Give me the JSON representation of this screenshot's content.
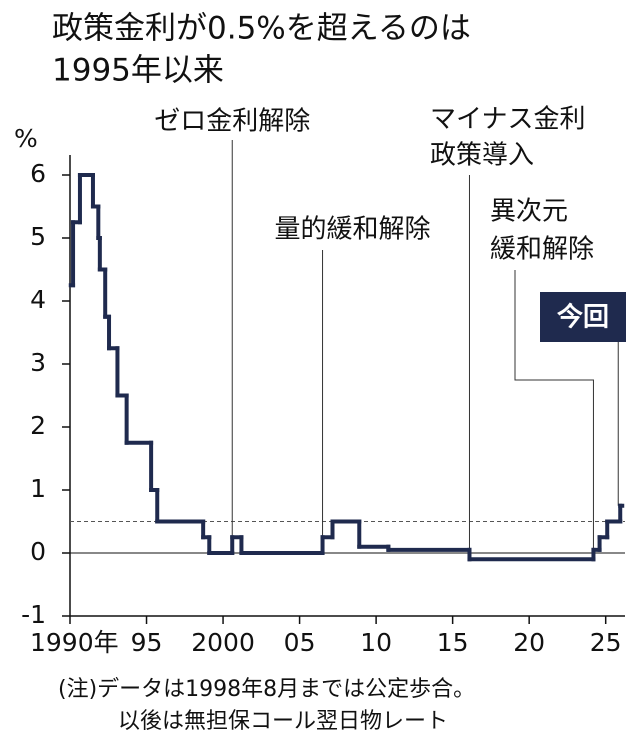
{
  "chart_data": {
    "type": "step",
    "title": [
      "政策金利が0.5%を超えるのは",
      "1995年以来"
    ],
    "y_unit": "%",
    "x": [
      1990.05,
      1990.2,
      1990.65,
      1991.5,
      1991.85,
      1991.95,
      1992.3,
      1992.55,
      1993.1,
      1993.7,
      1995.3,
      1995.7,
      1998.7,
      1999.1,
      2000.6,
      2001.2,
      2006.5,
      2007.15,
      2008.9,
      2010.8,
      2016.1,
      2024.2,
      2024.6,
      2025.1,
      2025.95
    ],
    "values": [
      4.25,
      5.25,
      6.0,
      5.5,
      5.0,
      4.5,
      3.75,
      3.25,
      2.5,
      1.75,
      1.0,
      0.5,
      0.25,
      0.0,
      0.25,
      0.0,
      0.25,
      0.5,
      0.1,
      0.05,
      -0.1,
      0.05,
      0.25,
      0.5,
      0.75
    ],
    "color": "#1f2a4e",
    "reference_line": 0.5,
    "xlim": [
      1990,
      2026
    ],
    "ylim": [
      -1,
      6
    ],
    "xticks": [
      {
        "value": 1990,
        "label": "1990年"
      },
      {
        "value": 1995,
        "label": "95"
      },
      {
        "value": 2000,
        "label": "2000"
      },
      {
        "value": 2005,
        "label": "05"
      },
      {
        "value": 2010,
        "label": "10"
      },
      {
        "value": 2015,
        "label": "15"
      },
      {
        "value": 2020,
        "label": "20"
      },
      {
        "value": 2025,
        "label": "25"
      }
    ],
    "yticks": [
      -1,
      0,
      1,
      2,
      3,
      4,
      5,
      6
    ],
    "annotations": [
      {
        "text": [
          "ゼロ金利解除"
        ],
        "x": 2000.6
      },
      {
        "text": [
          "量的緩和解除"
        ],
        "x": 2006.5
      },
      {
        "text": [
          "マイナス金利",
          "政策導入"
        ],
        "x": 2016.1
      },
      {
        "text": [
          "異次元",
          "緩和解除"
        ],
        "x": 2024.2
      },
      {
        "text": [
          "今回"
        ],
        "x": 2025.95
      }
    ],
    "note": [
      "(注)データは1998年8月までは公定歩合。",
      "以後は無担保コール翌日物レート"
    ]
  }
}
